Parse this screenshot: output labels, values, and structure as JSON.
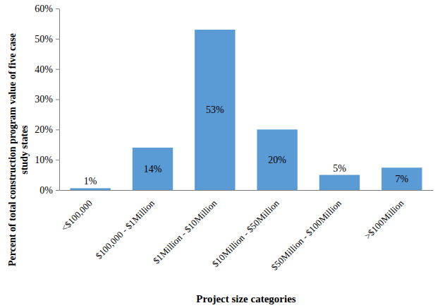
{
  "chart_data": {
    "type": "bar",
    "categories": [
      "<$100,000",
      "$100,000 - $1Million",
      "$1Million - $10Million",
      "$10Million - $50Million",
      "$50Million - $100Million",
      ">$100Million"
    ],
    "values": [
      0.6,
      14,
      53,
      20,
      5,
      7.4
    ],
    "value_labels": [
      "1%",
      "14%",
      "53%",
      "20%",
      "5%",
      "7%"
    ],
    "color": "#5b9bd5",
    "ylim": [
      0,
      60
    ],
    "yticks": [
      {
        "value": 0,
        "label": "0%"
      },
      {
        "value": 10,
        "label": "10%"
      },
      {
        "value": 20,
        "label": "20%"
      },
      {
        "value": 30,
        "label": "30%"
      },
      {
        "value": 40,
        "label": "40%"
      },
      {
        "value": 50,
        "label": "50%"
      },
      {
        "value": 60,
        "label": "60%"
      }
    ],
    "x_label": "Project size categories",
    "y_label": "Percent of total construction program value of five case study states",
    "grid": false,
    "data_labels": true
  }
}
